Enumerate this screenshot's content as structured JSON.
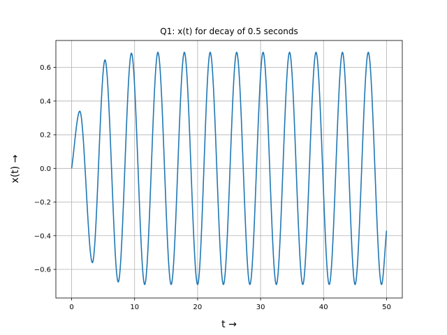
{
  "chart_data": {
    "type": "line",
    "title": "Q1: x(t) for decay of 0.5 seconds",
    "xlabel": "t →",
    "ylabel": "x(t) →",
    "xlim": [
      -2.5,
      52.5
    ],
    "ylim": [
      -0.77,
      0.76
    ],
    "xticks": [
      0,
      10,
      20,
      30,
      40,
      50
    ],
    "yticks": [
      -0.6,
      -0.4,
      -0.2,
      0.0,
      0.2,
      0.4,
      0.6
    ],
    "xtick_labels": [
      "0",
      "10",
      "20",
      "30",
      "40",
      "50"
    ],
    "ytick_labels": [
      "−0.6",
      "−0.4",
      "−0.2",
      "0.0",
      "0.2",
      "0.4",
      "0.6"
    ],
    "grid": true,
    "series": [
      {
        "color": "#1f77b4",
        "x": [
          0,
          1.3,
          3.3,
          5.3,
          7.4,
          9.5,
          11.6,
          13.7,
          15.8,
          17.9,
          20.0,
          22.0,
          24.1,
          26.2,
          28.3,
          30.4,
          32.5,
          34.6,
          36.7,
          38.8,
          40.9,
          43.0,
          45.0,
          47.1,
          49.2,
          50.0
        ],
        "y": [
          0.0,
          0.34,
          -0.56,
          0.645,
          -0.675,
          0.685,
          -0.69,
          0.69,
          -0.69,
          0.69,
          -0.69,
          0.69,
          -0.69,
          0.69,
          -0.69,
          0.69,
          -0.69,
          0.69,
          -0.69,
          0.69,
          -0.69,
          0.69,
          -0.69,
          0.69,
          -0.69,
          -0.37
        ]
      }
    ]
  }
}
